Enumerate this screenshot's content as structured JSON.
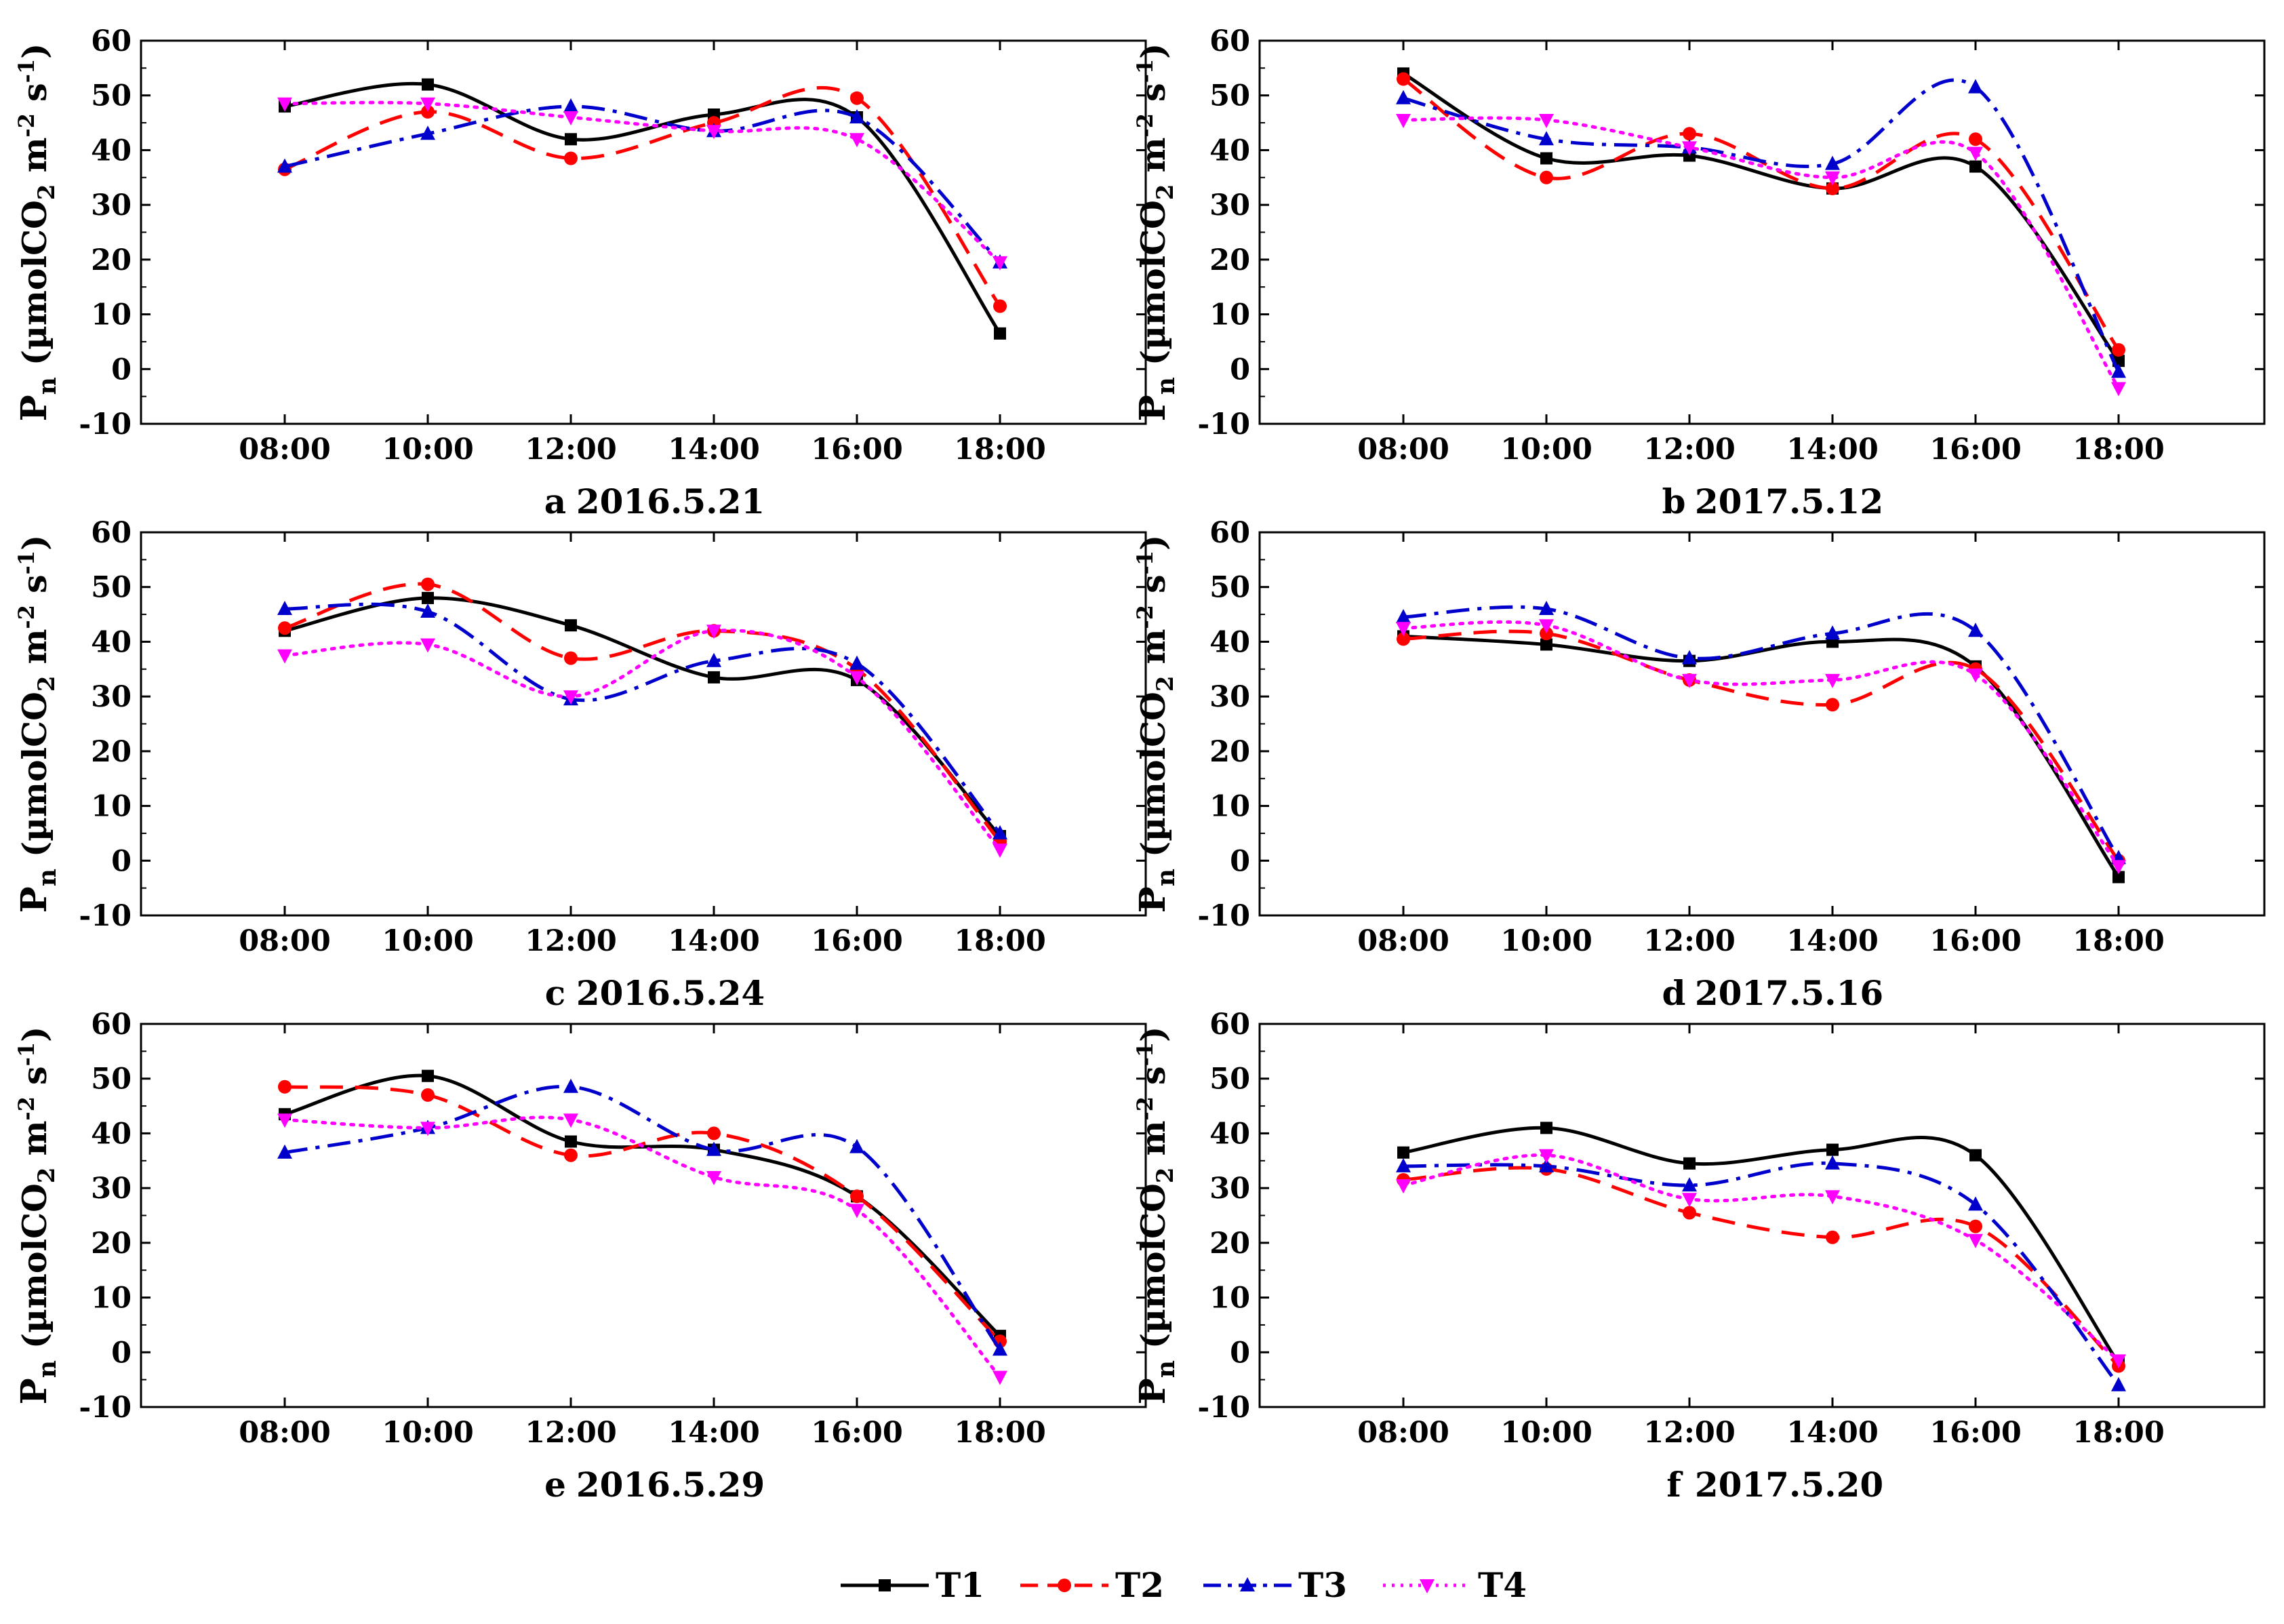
{
  "series_styles": [
    {
      "name": "T1",
      "color": "#000000",
      "dash": "",
      "marker": "square"
    },
    {
      "name": "T2",
      "color": "#ff0000",
      "dash": "34,18",
      "marker": "circle"
    },
    {
      "name": "T3",
      "color": "#0000cc",
      "dash": "34,12,6,12",
      "marker": "triangle-up"
    },
    {
      "name": "T4",
      "color": "#ff00ff",
      "dash": "4,10",
      "marker": "triangle-down"
    }
  ],
  "chart_data": [
    {
      "type": "line",
      "panel": "a",
      "caption": "2016.5.21",
      "ylabel_main": "P",
      "ylabel_sub": "n",
      "ylabel_unit": "(µmolCO",
      "ylabel_unit_sub": "2",
      "ylabel_m": " m",
      "ylabel_m_sup": "-2",
      "ylabel_s": " s",
      "ylabel_s_sup": "-1",
      "ylabel_close": ")",
      "categories": [
        "08:00",
        "10:00",
        "12:00",
        "14:00",
        "16:00",
        "18:00"
      ],
      "yticks": [
        "60",
        "50",
        "40",
        "30",
        "20",
        "10",
        "0",
        "-10"
      ],
      "ylim": [
        -10,
        60
      ],
      "series": [
        {
          "name": "T1",
          "values": [
            48,
            52,
            42,
            46.5,
            46,
            6.5
          ]
        },
        {
          "name": "T2",
          "values": [
            36.5,
            47,
            38.5,
            45,
            49.5,
            11.5
          ]
        },
        {
          "name": "T3",
          "values": [
            37,
            43,
            48,
            43.5,
            46,
            19.5
          ]
        },
        {
          "name": "T4",
          "values": [
            48.5,
            48.5,
            46,
            43.5,
            42,
            19.5
          ]
        }
      ]
    },
    {
      "type": "line",
      "panel": "b",
      "caption": "2017.5.12",
      "ylabel_main": "P",
      "ylabel_sub": "n",
      "ylabel_unit": "(µmolCO",
      "ylabel_unit_sub": "2",
      "ylabel_m": " m",
      "ylabel_m_sup": "-2",
      "ylabel_s": " s",
      "ylabel_s_sup": "-1",
      "ylabel_close": ")",
      "categories": [
        "08:00",
        "10:00",
        "12:00",
        "14:00",
        "16:00",
        "18:00"
      ],
      "yticks": [
        "60",
        "50",
        "40",
        "30",
        "20",
        "10",
        "0",
        "-10"
      ],
      "ylim": [
        -10,
        60
      ],
      "series": [
        {
          "name": "T1",
          "values": [
            54,
            38.5,
            39,
            33,
            37,
            1.5
          ]
        },
        {
          "name": "T2",
          "values": [
            53,
            35,
            43,
            33,
            42,
            3.5
          ]
        },
        {
          "name": "T3",
          "values": [
            49.5,
            42,
            40.5,
            37.5,
            51.5,
            -0.5
          ]
        },
        {
          "name": "T4",
          "values": [
            45.5,
            45.5,
            40.5,
            35,
            39.5,
            -3.5
          ]
        }
      ]
    },
    {
      "type": "line",
      "panel": "c",
      "caption": "2016.5.24",
      "ylabel_main": "P",
      "ylabel_sub": "n",
      "ylabel_unit": "(µmolCO",
      "ylabel_unit_sub": "2",
      "ylabel_m": " m",
      "ylabel_m_sup": "-2",
      "ylabel_s": " s",
      "ylabel_s_sup": "-1",
      "ylabel_close": ")",
      "categories": [
        "08:00",
        "10:00",
        "12:00",
        "14:00",
        "16:00",
        "18:00"
      ],
      "yticks": [
        "60",
        "50",
        "40",
        "30",
        "20",
        "10",
        "0",
        "-10"
      ],
      "ylim": [
        -10,
        60
      ],
      "series": [
        {
          "name": "T1",
          "values": [
            42,
            48,
            43,
            33.5,
            33,
            4.5
          ]
        },
        {
          "name": "T2",
          "values": [
            42.5,
            50.5,
            37,
            42,
            35,
            3.5
          ]
        },
        {
          "name": "T3",
          "values": [
            46,
            45.5,
            29.5,
            36.5,
            36,
            5
          ]
        },
        {
          "name": "T4",
          "values": [
            37.5,
            39.5,
            30,
            42,
            33.5,
            2
          ]
        }
      ]
    },
    {
      "type": "line",
      "panel": "d",
      "caption": "2017.5.16",
      "ylabel_main": "P",
      "ylabel_sub": "n",
      "ylabel_unit": "(µmolCO",
      "ylabel_unit_sub": "2",
      "ylabel_m": " m",
      "ylabel_m_sup": "-2",
      "ylabel_s": " s",
      "ylabel_s_sup": "-1",
      "ylabel_close": ")",
      "categories": [
        "08:00",
        "10:00",
        "12:00",
        "14:00",
        "16:00",
        "18:00"
      ],
      "yticks": [
        "60",
        "50",
        "40",
        "30",
        "20",
        "10",
        "0",
        "-10"
      ],
      "ylim": [
        -10,
        60
      ],
      "series": [
        {
          "name": "T1",
          "values": [
            41,
            39.5,
            36.5,
            40,
            35.5,
            -3
          ]
        },
        {
          "name": "T2",
          "values": [
            40.5,
            41.5,
            33,
            28.5,
            35,
            0
          ]
        },
        {
          "name": "T3",
          "values": [
            44.5,
            46,
            37,
            41.5,
            42,
            0.5
          ]
        },
        {
          "name": "T4",
          "values": [
            42.5,
            43,
            33,
            33,
            34,
            -1
          ]
        }
      ]
    },
    {
      "type": "line",
      "panel": "e",
      "caption": "2016.5.29",
      "ylabel_main": "P",
      "ylabel_sub": "n",
      "ylabel_unit": "(µmolCO",
      "ylabel_unit_sub": "2",
      "ylabel_m": " m",
      "ylabel_m_sup": "-2",
      "ylabel_s": " s",
      "ylabel_s_sup": "-1",
      "ylabel_close": ")",
      "categories": [
        "08:00",
        "10:00",
        "12:00",
        "14:00",
        "16:00",
        "18:00"
      ],
      "yticks": [
        "60",
        "50",
        "40",
        "30",
        "20",
        "10",
        "0",
        "-10"
      ],
      "ylim": [
        -10,
        60
      ],
      "series": [
        {
          "name": "T1",
          "values": [
            43.5,
            50.5,
            38.5,
            37,
            28.5,
            3
          ]
        },
        {
          "name": "T2",
          "values": [
            48.5,
            47,
            36,
            40,
            28.5,
            2
          ]
        },
        {
          "name": "T3",
          "values": [
            36.5,
            41,
            48.5,
            37,
            37.5,
            0.5
          ]
        },
        {
          "name": "T4",
          "values": [
            42.5,
            41,
            42.5,
            32,
            26,
            -4.5
          ]
        }
      ]
    },
    {
      "type": "line",
      "panel": "f",
      "caption": "2017.5.20",
      "ylabel_main": "P",
      "ylabel_sub": "n",
      "ylabel_unit": "(µmolCO",
      "ylabel_unit_sub": "2",
      "ylabel_m": " m",
      "ylabel_m_sup": "-2",
      "ylabel_s": " s",
      "ylabel_s_sup": "-1",
      "ylabel_close": ")",
      "categories": [
        "08:00",
        "10:00",
        "12:00",
        "14:00",
        "16:00",
        "18:00"
      ],
      "yticks": [
        "60",
        "50",
        "40",
        "30",
        "20",
        "10",
        "0",
        "-10"
      ],
      "ylim": [
        -10,
        60
      ],
      "series": [
        {
          "name": "T1",
          "values": [
            36.5,
            41,
            34.5,
            37,
            36,
            -2
          ]
        },
        {
          "name": "T2",
          "values": [
            31.5,
            33.5,
            25.5,
            21,
            23,
            -2.5
          ]
        },
        {
          "name": "T3",
          "values": [
            34,
            34,
            30.5,
            34.5,
            27,
            -6
          ]
        },
        {
          "name": "T4",
          "values": [
            30.5,
            36,
            28,
            28.5,
            20.5,
            -1.5
          ]
        }
      ]
    }
  ],
  "legend": {
    "entries": [
      "T1",
      "T2",
      "T3",
      "T4"
    ]
  }
}
